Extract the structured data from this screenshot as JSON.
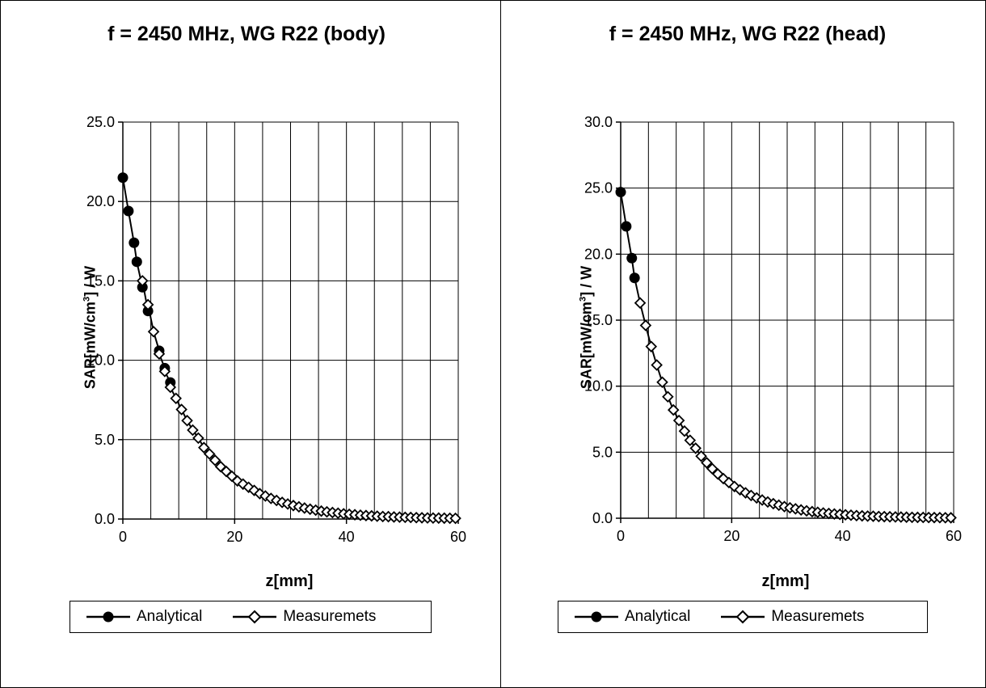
{
  "chart_data": [
    {
      "type": "line",
      "title": "f = 2450 MHz, WG R22 (body)",
      "xlabel": "z[mm]",
      "ylabel_main": "SAR[mW/cm",
      "ylabel_sup": "3",
      "ylabel_tail": "] / W",
      "xlim": [
        0,
        60
      ],
      "ylim": [
        0,
        25
      ],
      "xticks": [
        "0",
        "20",
        "40",
        "60"
      ],
      "yticks": [
        "0.0",
        "5.0",
        "10.0",
        "15.0",
        "20.0",
        "25.0"
      ],
      "grid": true,
      "legend_position": "bottom",
      "series": [
        {
          "name": "Analytical",
          "marker": "filled-circle",
          "color": "#000000",
          "x": [
            0,
            1,
            2,
            2.5,
            3.5,
            4.5,
            6.5,
            7.5,
            8.5
          ],
          "y": [
            21.5,
            19.4,
            17.4,
            16.2,
            14.6,
            13.1,
            10.6,
            9.5,
            8.6
          ]
        },
        {
          "name": "Measuremets",
          "marker": "open-diamond",
          "color": "#000000",
          "x": [
            3.5,
            4.5,
            5.5,
            6.5,
            7.5,
            8.5,
            9.5,
            10.5,
            11.5,
            12.5,
            13.5,
            14.5,
            15.5,
            16.5,
            17.5,
            18.5,
            19.5,
            20.5,
            21.5,
            22.5,
            23.5,
            24.5,
            25.5,
            26.5,
            27.5,
            28.5,
            29.5,
            30.5,
            31.5,
            32.5,
            33.5,
            34.5,
            35.5,
            36.5,
            37.5,
            38.5,
            39.5,
            40.5,
            41.5,
            42.5,
            43.5,
            44.5,
            45.5,
            46.5,
            47.5,
            48.5,
            49.5,
            50.5,
            51.5,
            52.5,
            53.5,
            54.5,
            55.5,
            56.5,
            57.5,
            58.5,
            59.5
          ],
          "y": [
            15.0,
            13.5,
            11.8,
            10.4,
            9.3,
            8.3,
            7.6,
            6.9,
            6.2,
            5.6,
            5.1,
            4.5,
            4.1,
            3.7,
            3.3,
            3.0,
            2.7,
            2.4,
            2.2,
            2.0,
            1.8,
            1.6,
            1.45,
            1.3,
            1.17,
            1.05,
            0.95,
            0.85,
            0.77,
            0.69,
            0.62,
            0.56,
            0.5,
            0.45,
            0.41,
            0.37,
            0.33,
            0.3,
            0.27,
            0.24,
            0.22,
            0.2,
            0.18,
            0.16,
            0.15,
            0.13,
            0.12,
            0.11,
            0.1,
            0.09,
            0.08,
            0.07,
            0.065,
            0.06,
            0.055,
            0.05,
            0.045
          ]
        }
      ]
    },
    {
      "type": "line",
      "title": "f = 2450 MHz, WG R22 (head)",
      "xlabel": "z[mm]",
      "ylabel_main": "SAR[mW/cm",
      "ylabel_sup": "3",
      "ylabel_tail": "] / W",
      "xlim": [
        0,
        60
      ],
      "ylim": [
        0,
        30
      ],
      "xticks": [
        "0",
        "20",
        "40",
        "60"
      ],
      "yticks": [
        "0.0",
        "5.0",
        "10.0",
        "15.0",
        "20.0",
        "25.0",
        "30.0"
      ],
      "grid": true,
      "legend_position": "bottom",
      "series": [
        {
          "name": "Analytical",
          "marker": "filled-circle",
          "color": "#000000",
          "x": [
            0,
            1,
            2,
            2.5
          ],
          "y": [
            24.7,
            22.1,
            19.7,
            18.2
          ]
        },
        {
          "name": "Measuremets",
          "marker": "open-diamond",
          "color": "#000000",
          "x": [
            3.5,
            4.5,
            5.5,
            6.5,
            7.5,
            8.5,
            9.5,
            10.5,
            11.5,
            12.5,
            13.5,
            14.5,
            15.5,
            16.5,
            17.5,
            18.5,
            19.5,
            20.5,
            21.5,
            22.5,
            23.5,
            24.5,
            25.5,
            26.5,
            27.5,
            28.5,
            29.5,
            30.5,
            31.5,
            32.5,
            33.5,
            34.5,
            35.5,
            36.5,
            37.5,
            38.5,
            39.5,
            40.5,
            41.5,
            42.5,
            43.5,
            44.5,
            45.5,
            46.5,
            47.5,
            48.5,
            49.5,
            50.5,
            51.5,
            52.5,
            53.5,
            54.5,
            55.5,
            56.5,
            57.5,
            58.5,
            59.5
          ],
          "y": [
            16.3,
            14.6,
            13.0,
            11.6,
            10.3,
            9.2,
            8.2,
            7.4,
            6.6,
            5.9,
            5.3,
            4.7,
            4.2,
            3.75,
            3.35,
            3.0,
            2.7,
            2.4,
            2.15,
            1.92,
            1.72,
            1.54,
            1.38,
            1.23,
            1.1,
            0.99,
            0.88,
            0.79,
            0.71,
            0.63,
            0.56,
            0.5,
            0.45,
            0.4,
            0.36,
            0.32,
            0.29,
            0.26,
            0.23,
            0.2,
            0.18,
            0.16,
            0.15,
            0.13,
            0.12,
            0.11,
            0.1,
            0.09,
            0.08,
            0.07,
            0.065,
            0.06,
            0.055,
            0.05,
            0.045,
            0.04,
            0.035
          ]
        }
      ]
    }
  ]
}
